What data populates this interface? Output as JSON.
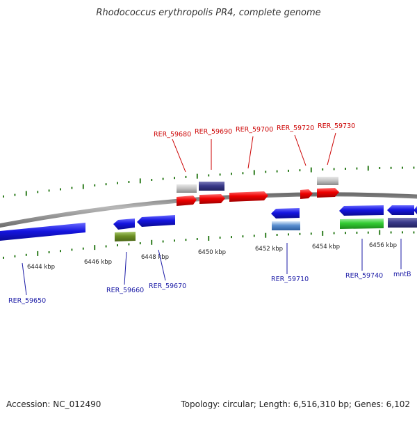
{
  "title": "Rhodococcus erythropolis PR4, complete genome",
  "footer": {
    "accession": "Accession: NC_012490",
    "topology": "Topology: circular; Length: 6,516,310 bp; Genes: 6,102"
  },
  "colors": {
    "backbone": "#8c8c8c",
    "tick": "#2e7d1f",
    "label_top": "#cc0000",
    "label_bottom": "#1a1aa6",
    "gene_red": "#ee0000",
    "gene_blue": "#1515e0",
    "gene_navy": "#3a3a8a",
    "gene_gray": "#b8b8b8",
    "gene_green": "#33cc33",
    "gene_olive": "#6b8e23",
    "gene_lightblue": "#5b8fd0"
  },
  "scale_labels": [
    "6444 kbp",
    "6446 kbp",
    "6448 kbp",
    "6450 kbp",
    "6452 kbp",
    "6454 kbp",
    "6456 kbp"
  ],
  "gene_labels_top": [
    "RER_59680",
    "RER_59690",
    "RER_59700",
    "RER_59720",
    "RER_59730"
  ],
  "gene_labels_bottom": [
    "RER_59650",
    "RER_59660",
    "RER_59670",
    "RER_59710",
    "RER_59740",
    "mntB"
  ]
}
